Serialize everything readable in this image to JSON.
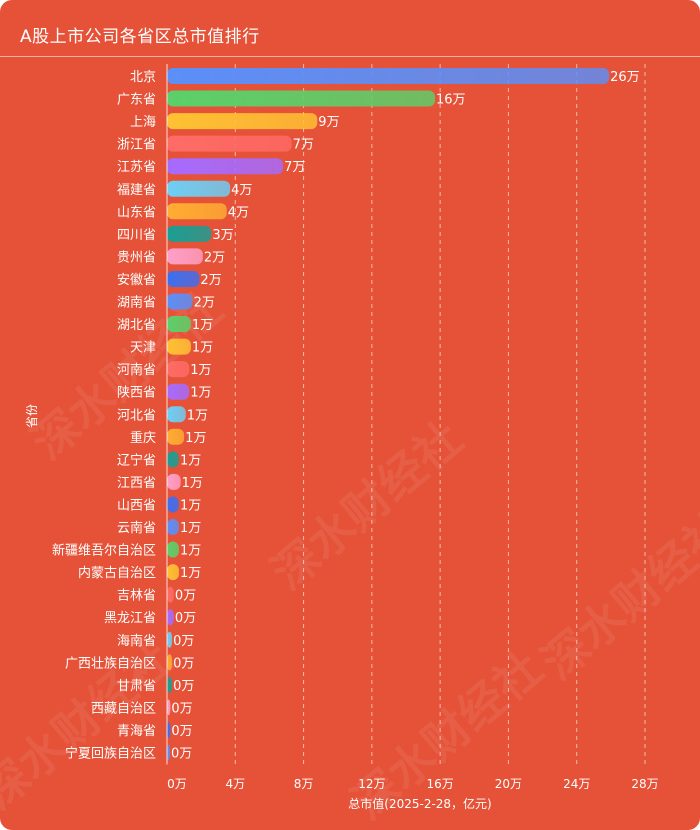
{
  "title": "A股上市公司各省区总市值排行",
  "watermark": "深水财经社",
  "chart_data": {
    "type": "bar",
    "orientation": "horizontal",
    "title": "A股上市公司各省区总市值排行",
    "xlabel": "总市值(2025-2-28，亿元)",
    "ylabel": "省份",
    "xlim": [
      0,
      280000
    ],
    "x_ticks": [
      0,
      40000,
      80000,
      120000,
      160000,
      200000,
      240000,
      280000
    ],
    "x_tick_labels": [
      "0万",
      "4万",
      "8万",
      "12万",
      "16万",
      "20万",
      "24万",
      "28万"
    ],
    "grid": "vertical dashed",
    "categories": [
      "北京",
      "广东省",
      "上海",
      "浙江省",
      "江苏省",
      "福建省",
      "山东省",
      "四川省",
      "贵州省",
      "安徽省",
      "湖南省",
      "湖北省",
      "天津",
      "河南省",
      "陕西省",
      "河北省",
      "重庆",
      "辽宁省",
      "江西省",
      "山西省",
      "云南省",
      "新疆维吾尔自治区",
      "内蒙古自治区",
      "吉林省",
      "黑龙江省",
      "海南省",
      "广西壮族自治区",
      "甘肃省",
      "西藏自治区",
      "青海省",
      "宁夏回族自治区"
    ],
    "values": [
      259000,
      157000,
      88000,
      73000,
      68000,
      37000,
      35000,
      26000,
      21000,
      19000,
      15000,
      14000,
      14000,
      13000,
      13000,
      11000,
      10000,
      7000,
      8000,
      7000,
      7000,
      7000,
      7000,
      4000,
      4000,
      3000,
      3000,
      3000,
      2000,
      2000,
      1000
    ],
    "value_labels": [
      "26万",
      "16万",
      "9万",
      "7万",
      "7万",
      "4万",
      "4万",
      "3万",
      "2万",
      "2万",
      "2万",
      "1万",
      "1万",
      "1万",
      "1万",
      "1万",
      "1万",
      "1万",
      "1万",
      "1万",
      "1万",
      "1万",
      "1万",
      "0万",
      "0万",
      "0万",
      "0万",
      "0万",
      "0万",
      "0万",
      "0万"
    ],
    "colors": [
      "#5b8ff9",
      "#5ad16a",
      "#ffc233",
      "#ff6b66",
      "#a66bff",
      "#6dcff6",
      "#ffad33",
      "#1a9e93",
      "#ffa0c8",
      "#3d6ef0"
    ]
  }
}
